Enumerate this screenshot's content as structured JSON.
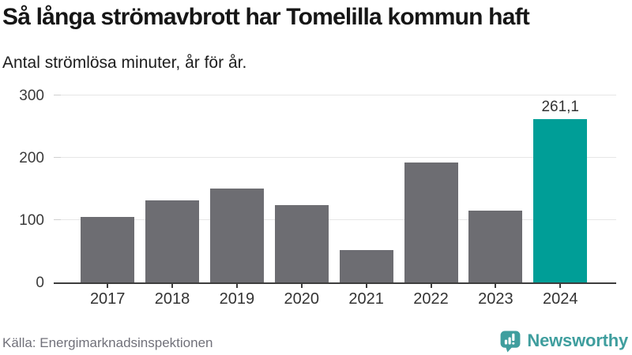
{
  "header": {
    "title": "Så långa strömavbrott har Tomelilla kommun haft",
    "subtitle": "Antal strömlösa minuter, år för år."
  },
  "chart_data": {
    "type": "bar",
    "categories": [
      "2017",
      "2018",
      "2019",
      "2020",
      "2021",
      "2022",
      "2023",
      "2024"
    ],
    "values": [
      105,
      131,
      150,
      124,
      52,
      192,
      115,
      261.1
    ],
    "title": "Så långa strömavbrott har Tomelilla kommun haft",
    "subtitle": "Antal strömlösa minuter, år för år.",
    "xlabel": "",
    "ylabel": "",
    "ylim": [
      0,
      300
    ],
    "yticks": [
      0,
      100,
      200,
      300
    ],
    "grid": true,
    "legend": false,
    "highlight_index": 7,
    "value_labels": [
      {
        "index": 7,
        "text": "261,1"
      }
    ],
    "colors": {
      "bar": "#6d6d72",
      "highlight": "#009e97",
      "gridline": "#e6e6e6",
      "axis": "#3d3d3d",
      "tick_label": "#3a3a3a",
      "value_label": "#333333"
    }
  },
  "footer": {
    "source": "Källa: Energimarknadsinspektionen",
    "logo_text": "Newsworthy",
    "logo_color": "#3f9e9e"
  }
}
